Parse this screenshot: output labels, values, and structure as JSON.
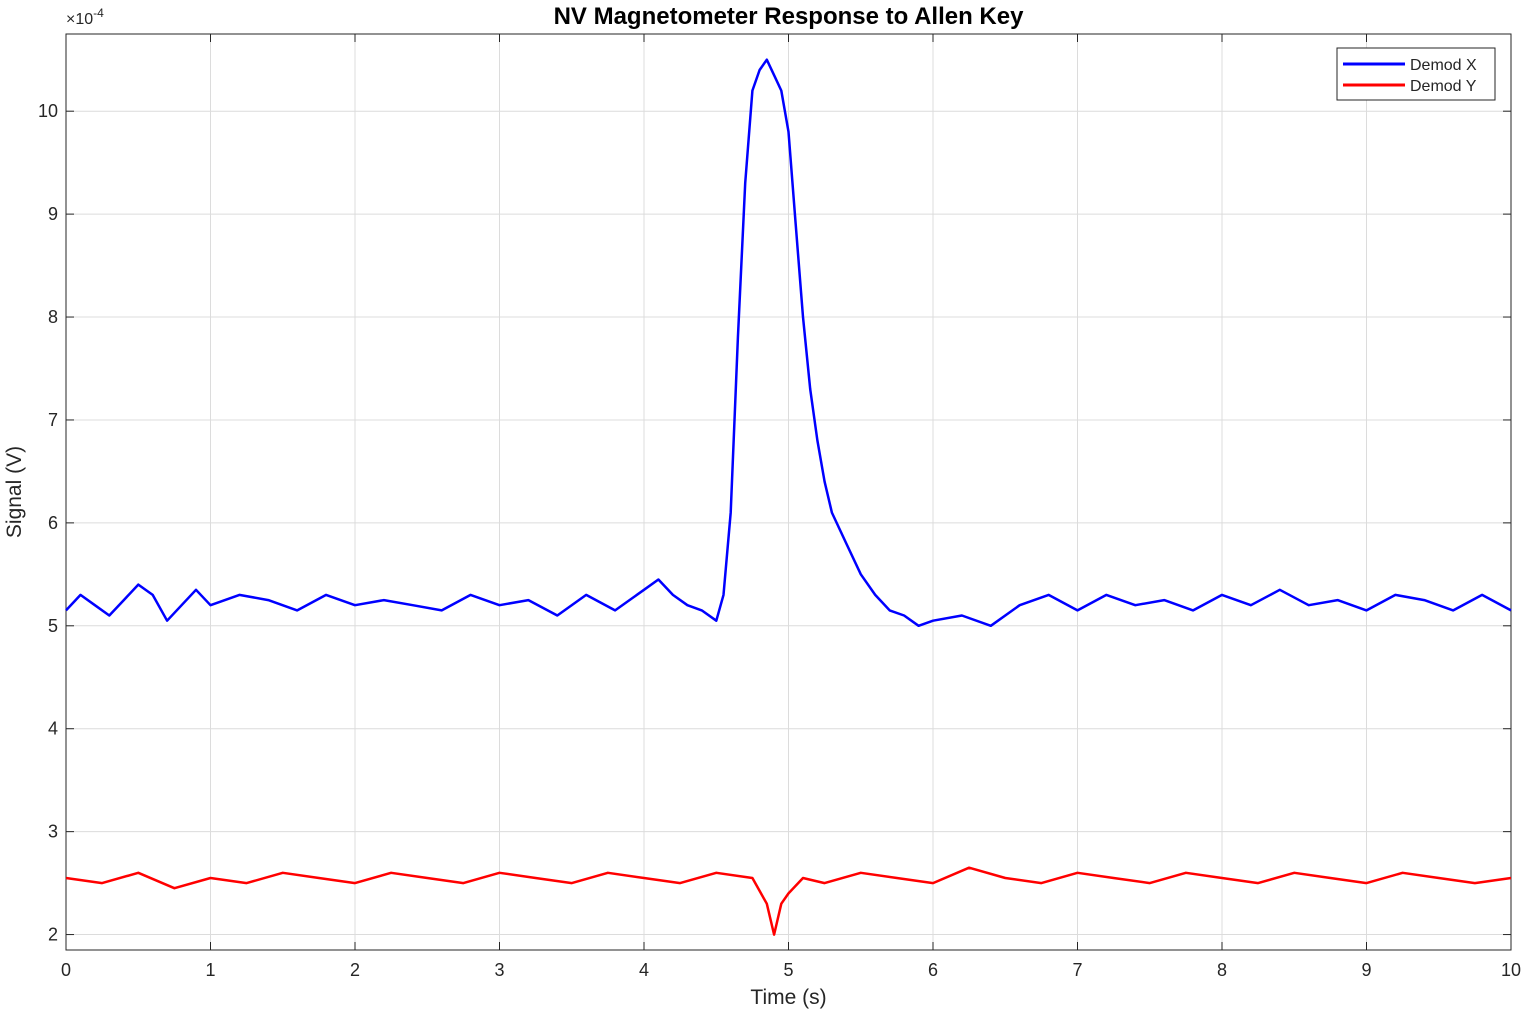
{
  "chart_data": {
    "type": "line",
    "title": "NV Magnetometer Response to Allen Key",
    "xlabel": "Time (s)",
    "ylabel": "Signal (V)",
    "y_multiplier_label": "×10",
    "y_multiplier_exponent": "-4",
    "xlim": [
      0,
      10
    ],
    "ylim": [
      1.85,
      10.75
    ],
    "x_ticks": [
      "0",
      "1",
      "2",
      "3",
      "4",
      "5",
      "6",
      "7",
      "8",
      "9",
      "10"
    ],
    "y_ticks": [
      "2",
      "3",
      "4",
      "5",
      "6",
      "7",
      "8",
      "9",
      "10"
    ],
    "grid": true,
    "legend_placement": "top-right",
    "series": [
      {
        "name": "Demod X",
        "color": "#0000ff",
        "x": [
          0,
          0.1,
          0.2,
          0.3,
          0.4,
          0.5,
          0.6,
          0.7,
          0.8,
          0.9,
          1.0,
          1.2,
          1.4,
          1.6,
          1.8,
          2.0,
          2.2,
          2.4,
          2.6,
          2.8,
          3.0,
          3.2,
          3.4,
          3.6,
          3.8,
          4.0,
          4.1,
          4.2,
          4.3,
          4.4,
          4.5,
          4.55,
          4.6,
          4.65,
          4.7,
          4.75,
          4.8,
          4.85,
          4.9,
          4.95,
          5.0,
          5.05,
          5.1,
          5.15,
          5.2,
          5.25,
          5.3,
          5.4,
          5.5,
          5.6,
          5.7,
          5.8,
          5.9,
          6.0,
          6.2,
          6.4,
          6.6,
          6.8,
          7.0,
          7.2,
          7.4,
          7.6,
          7.8,
          8.0,
          8.2,
          8.4,
          8.6,
          8.8,
          9.0,
          9.2,
          9.4,
          9.6,
          9.8,
          10.0
        ],
        "y": [
          5.15,
          5.3,
          5.2,
          5.1,
          5.25,
          5.4,
          5.3,
          5.05,
          5.2,
          5.35,
          5.2,
          5.3,
          5.25,
          5.15,
          5.3,
          5.2,
          5.25,
          5.2,
          5.15,
          5.3,
          5.2,
          5.25,
          5.1,
          5.3,
          5.15,
          5.35,
          5.45,
          5.3,
          5.2,
          5.15,
          5.05,
          5.3,
          6.1,
          7.8,
          9.3,
          10.2,
          10.4,
          10.5,
          10.35,
          10.2,
          9.8,
          8.9,
          8.0,
          7.3,
          6.8,
          6.4,
          6.1,
          5.8,
          5.5,
          5.3,
          5.15,
          5.1,
          5.0,
          5.05,
          5.1,
          5.0,
          5.2,
          5.3,
          5.15,
          5.3,
          5.2,
          5.25,
          5.15,
          5.3,
          5.2,
          5.35,
          5.2,
          5.25,
          5.15,
          5.3,
          5.25,
          5.15,
          5.3,
          5.15
        ]
      },
      {
        "name": "Demod Y",
        "color": "#ff0000",
        "x": [
          0,
          0.25,
          0.5,
          0.75,
          1.0,
          1.25,
          1.5,
          1.75,
          2.0,
          2.25,
          2.5,
          2.75,
          3.0,
          3.25,
          3.5,
          3.75,
          4.0,
          4.25,
          4.5,
          4.75,
          4.85,
          4.9,
          4.95,
          5.0,
          5.1,
          5.25,
          5.5,
          5.75,
          6.0,
          6.25,
          6.5,
          6.75,
          7.0,
          7.25,
          7.5,
          7.75,
          8.0,
          8.25,
          8.5,
          8.75,
          9.0,
          9.25,
          9.5,
          9.75,
          10.0
        ],
        "y": [
          2.55,
          2.5,
          2.6,
          2.45,
          2.55,
          2.5,
          2.6,
          2.55,
          2.5,
          2.6,
          2.55,
          2.5,
          2.6,
          2.55,
          2.5,
          2.6,
          2.55,
          2.5,
          2.6,
          2.55,
          2.3,
          2.0,
          2.3,
          2.4,
          2.55,
          2.5,
          2.6,
          2.55,
          2.5,
          2.65,
          2.55,
          2.5,
          2.6,
          2.55,
          2.5,
          2.6,
          2.55,
          2.5,
          2.6,
          2.55,
          2.5,
          2.6,
          2.55,
          2.5,
          2.55
        ]
      }
    ]
  }
}
